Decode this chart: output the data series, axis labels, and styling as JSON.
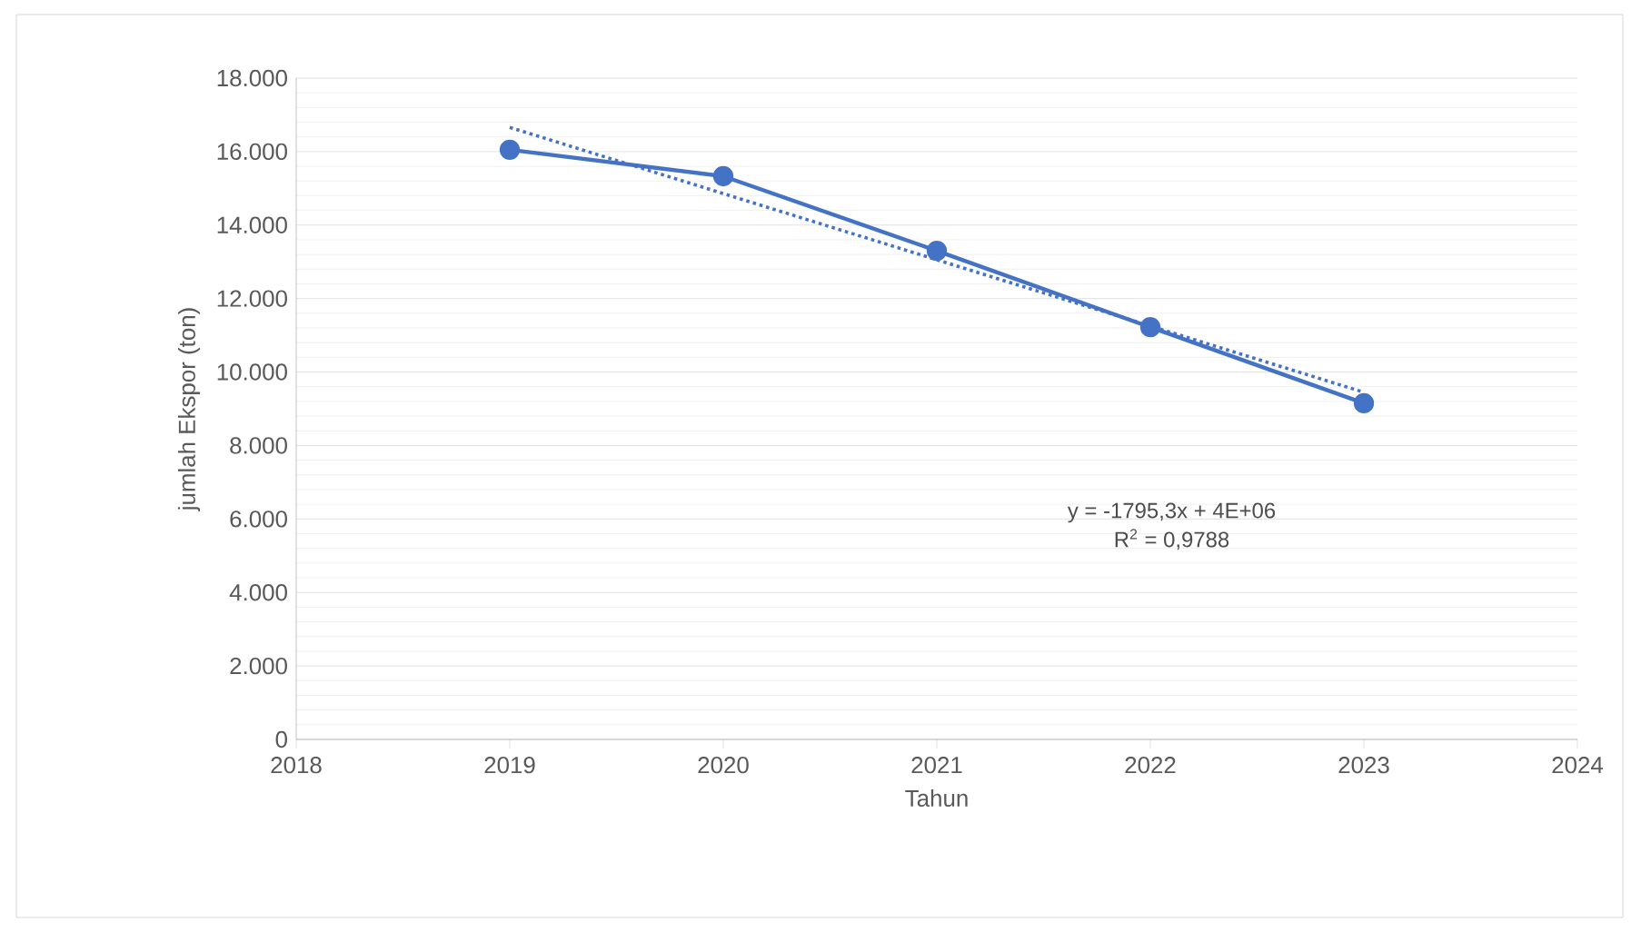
{
  "chart_data": {
    "type": "line",
    "xlabel": "Tahun",
    "ylabel": "jumlah Ekspor (ton)",
    "xlim": [
      2018,
      2024
    ],
    "xticks": [
      2018,
      2019,
      2020,
      2021,
      2022,
      2023,
      2024
    ],
    "ylim": [
      0,
      18000
    ],
    "yticks": [
      {
        "value": 0,
        "label": "0"
      },
      {
        "value": 2000,
        "label": "2.000"
      },
      {
        "value": 4000,
        "label": "4.000"
      },
      {
        "value": 6000,
        "label": "6.000"
      },
      {
        "value": 8000,
        "label": "8.000"
      },
      {
        "value": 10000,
        "label": "10.000"
      },
      {
        "value": 12000,
        "label": "12.000"
      },
      {
        "value": 14000,
        "label": "14.000"
      },
      {
        "value": 16000,
        "label": "16.000"
      },
      {
        "value": 18000,
        "label": "18.000"
      }
    ],
    "x": [
      2019,
      2020,
      2021,
      2022,
      2023
    ],
    "series": [
      {
        "color": "#4472c4",
        "values": [
          16050,
          15330,
          13300,
          11220,
          9150
        ],
        "marker": "circle",
        "line_style": "solid"
      },
      {
        "type": "line",
        "color": "#4472c4",
        "x": [
          2019,
          2023
        ],
        "values": [
          16660,
          9450
        ],
        "marker": "none",
        "line_style": "dotted"
      }
    ],
    "annotations": [
      "y = -1795,3x + 4E+06",
      "R$^{2}$ = 0,9788"
    ],
    "grid": "y"
  }
}
